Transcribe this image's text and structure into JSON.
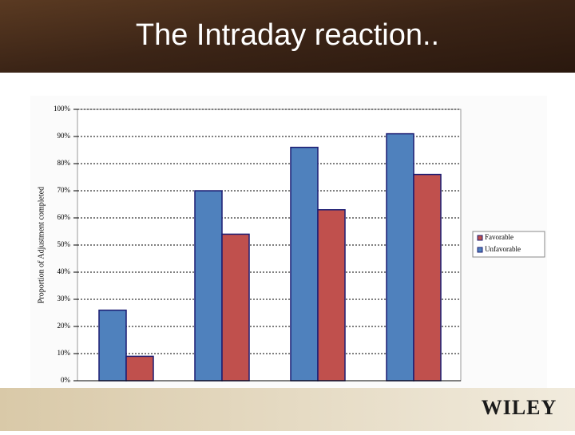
{
  "slide": {
    "title": "The Intraday reaction..",
    "logo": "WILEY"
  },
  "chart_data": {
    "type": "bar",
    "y_label": "Proportion of Adjustment completed",
    "categories": [
      null,
      null,
      null,
      null
    ],
    "series": [
      {
        "name": "Unfavorable",
        "color": "#4f81bd",
        "values": [
          26,
          70,
          86,
          91
        ]
      },
      {
        "name": "Favorable",
        "color": "#c0504d",
        "values": [
          9,
          54,
          63,
          76
        ]
      }
    ],
    "ylim": [
      0,
      100
    ],
    "yticks": [
      {
        "value": 0,
        "label": "0%"
      },
      {
        "value": 10,
        "label": "10%"
      },
      {
        "value": 20,
        "label": "20%"
      },
      {
        "value": 30,
        "label": "30%"
      },
      {
        "value": 40,
        "label": "40%"
      },
      {
        "value": 50,
        "label": "50%"
      },
      {
        "value": 60,
        "label": "60%"
      },
      {
        "value": 70,
        "label": "70%"
      },
      {
        "value": 80,
        "label": "80%"
      },
      {
        "value": 90,
        "label": "90%"
      },
      {
        "value": 100,
        "label": "100%"
      }
    ],
    "grid": true
  }
}
